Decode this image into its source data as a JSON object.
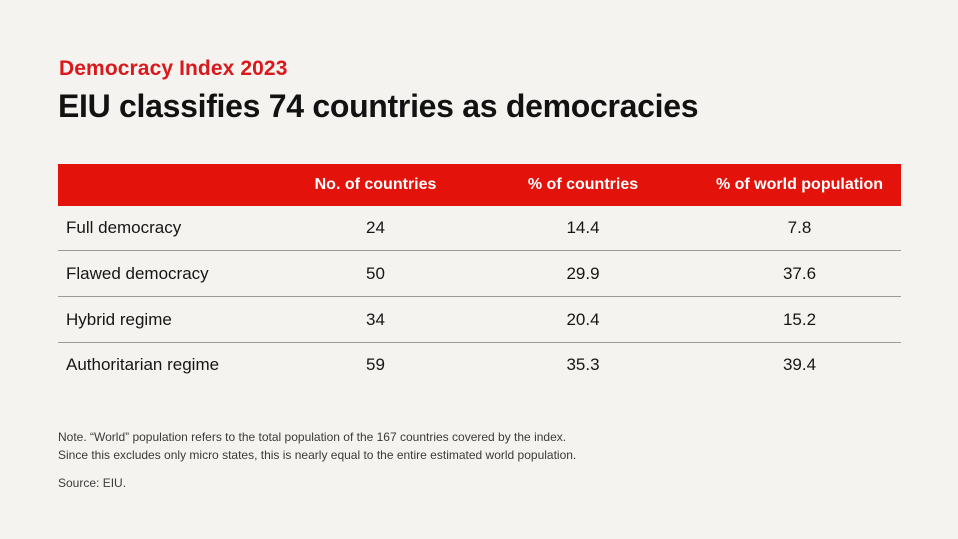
{
  "header": {
    "kicker": "Democracy Index 2023",
    "title": "EIU classifies 74 countries as democracies"
  },
  "chart_data": {
    "type": "table",
    "title": "EIU classifies 74 countries as democracies",
    "subtitle": "Democracy Index 2023",
    "columns": [
      "",
      "No. of countries",
      "% of countries",
      "% of world population"
    ],
    "rows": [
      {
        "category": "Full democracy",
        "countries": "24",
        "pct_countries": "14.4",
        "pct_population": "7.8"
      },
      {
        "category": "Flawed democracy",
        "countries": "50",
        "pct_countries": "29.9",
        "pct_population": "37.6"
      },
      {
        "category": "Hybrid regime",
        "countries": "34",
        "pct_countries": "20.4",
        "pct_population": "15.2"
      },
      {
        "category": "Authoritarian regime",
        "countries": "59",
        "pct_countries": "35.3",
        "pct_population": "39.4"
      }
    ]
  },
  "footer": {
    "note_line1": "Note. “World” population refers to the total population of the 167 countries covered by the index.",
    "note_line2": "Since this excludes only micro states, this is nearly equal to the entire estimated world population.",
    "source": "Source: EIU."
  },
  "colors": {
    "accent": "#e3120b",
    "kicker": "#d9191c",
    "background": "#f4f3ef"
  }
}
